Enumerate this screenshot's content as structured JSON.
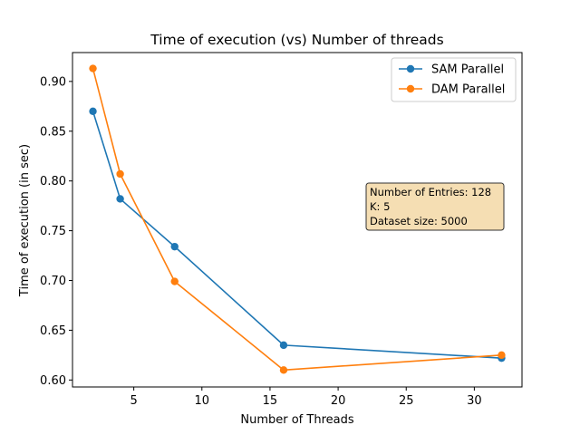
{
  "chart_data": {
    "type": "line",
    "title": "Time of execution (vs) Number of threads",
    "xlabel": "Number of Threads",
    "ylabel": "Time of execution (in sec)",
    "xlim": [
      0.5,
      33.5
    ],
    "ylim": [
      0.593,
      0.929
    ],
    "xticks": [
      5,
      10,
      15,
      20,
      25,
      30
    ],
    "yticks": [
      0.6,
      0.65,
      0.7,
      0.75,
      0.8,
      0.85,
      0.9
    ],
    "x": [
      2,
      4,
      8,
      16,
      32
    ],
    "series": [
      {
        "name": "SAM Parallel",
        "color": "#1f77b4",
        "values": [
          0.87,
          0.782,
          0.734,
          0.635,
          0.622
        ]
      },
      {
        "name": "DAM Parallel",
        "color": "#ff7f0e",
        "values": [
          0.913,
          0.807,
          0.699,
          0.61,
          0.625
        ]
      }
    ],
    "legend_position": "top-right",
    "grid": false,
    "annotation": {
      "lines": [
        "Number of Entries: 128",
        "K: 5",
        "Dataset size: 5000"
      ],
      "background": "#f5deb3"
    }
  }
}
